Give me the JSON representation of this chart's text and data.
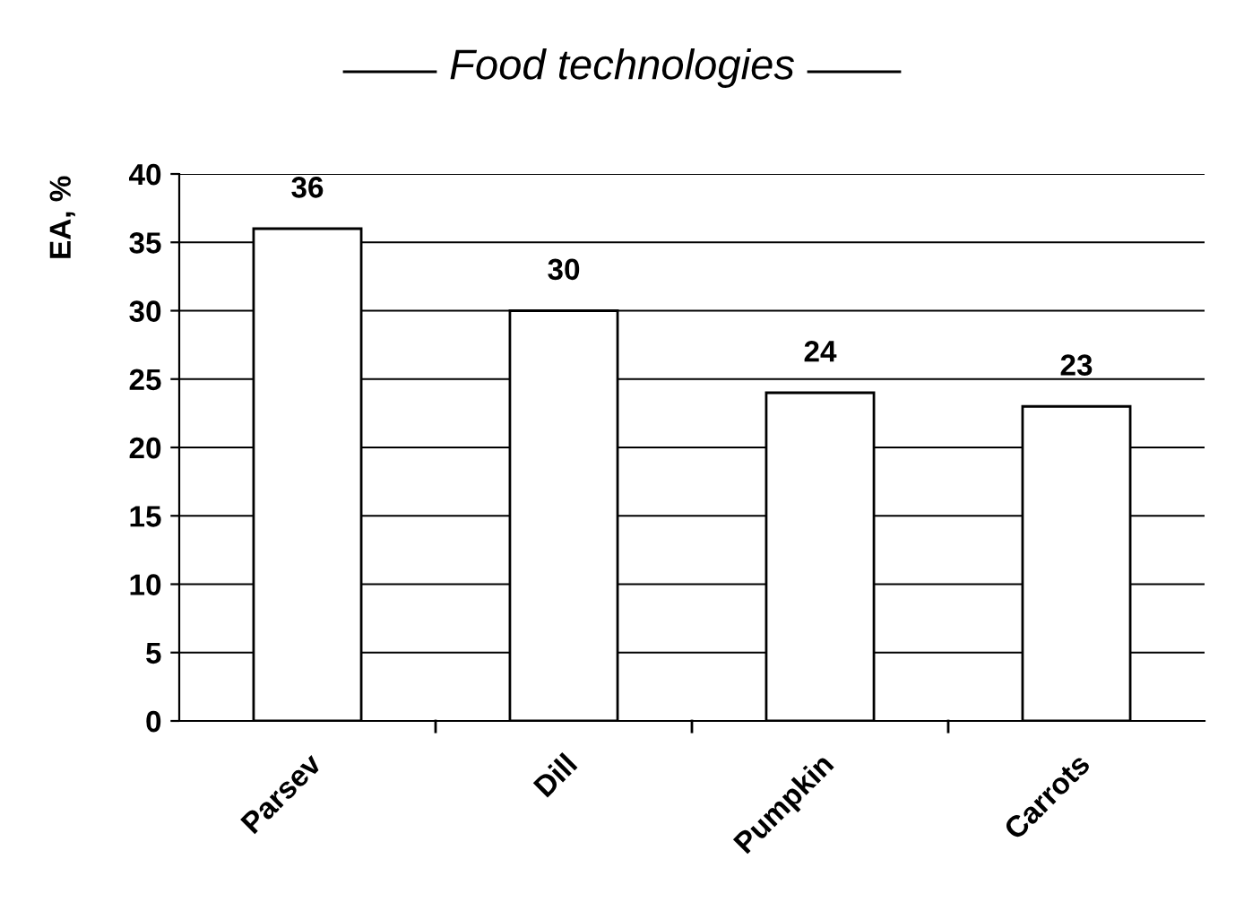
{
  "chart_data": {
    "type": "bar",
    "title": "Food technologies",
    "ylabel": "EA, %",
    "categories": [
      "Parsev",
      "Dill",
      "Pumpkin",
      "Carrots"
    ],
    "values": [
      36,
      30,
      24,
      23
    ],
    "color": "#ffffff",
    "ylim": [
      0,
      40
    ],
    "yticks": [
      0,
      5,
      10,
      15,
      20,
      25,
      30,
      35,
      40
    ],
    "grid": "y",
    "data_labels": true
  }
}
